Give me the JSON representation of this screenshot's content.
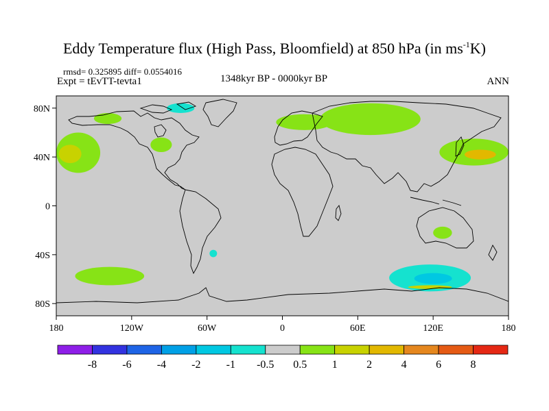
{
  "header": {
    "title_main": "Eddy Temperature flux (High Pass, Bloomfield) at 850 hPa (in ms",
    "title_sup": "-1",
    "title_end": "K)",
    "rmsd_line": "rmsd= 0.325895 diff= 0.0554016",
    "experiment": "Expt = tEvTT-tevta1",
    "period": "1348kyr BP - 0000kyr BP",
    "season": "ANN"
  },
  "map": {
    "background_color": "#cccccc",
    "coastline_color": "#000000",
    "lat_range": [
      -90,
      90
    ],
    "lon_range": [
      -180,
      180
    ],
    "lat_ticks": [
      {
        "value": 80,
        "label": "80N"
      },
      {
        "value": 40,
        "label": "40N"
      },
      {
        "value": 0,
        "label": "0"
      },
      {
        "value": -40,
        "label": "40S"
      },
      {
        "value": -80,
        "label": "80S"
      }
    ],
    "lon_ticks": [
      {
        "value": -180,
        "label": "180"
      },
      {
        "value": -120,
        "label": "120W"
      },
      {
        "value": -60,
        "label": "60W"
      },
      {
        "value": 0,
        "label": "0"
      },
      {
        "value": 60,
        "label": "60E"
      },
      {
        "value": 120,
        "label": "120E"
      },
      {
        "value": 180,
        "label": "180"
      }
    ],
    "regions": [
      {
        "name": "north-pacific-west-positive",
        "level": "0.5 to 1",
        "color": "#87e316",
        "lon": [
          -180,
          -145
        ],
        "lat": [
          27,
          60
        ]
      },
      {
        "name": "north-pacific-west-core",
        "level": "1 to 2",
        "color": "#c8d200",
        "lon": [
          -178,
          -160
        ],
        "lat": [
          35,
          50
        ]
      },
      {
        "name": "north-america-positive",
        "level": "0.5 to 1",
        "color": "#87e316",
        "lon": [
          -105,
          -88
        ],
        "lat": [
          44,
          56
        ]
      },
      {
        "name": "canadian-archipelago-negative",
        "level": "-1 to -0.5",
        "color": "#15e2cf",
        "lon": [
          -92,
          -70
        ],
        "lat": [
          76,
          84
        ]
      },
      {
        "name": "alaska-positive",
        "level": "0.5 to 1",
        "color": "#87e316",
        "lon": [
          -150,
          -128
        ],
        "lat": [
          67,
          76
        ]
      },
      {
        "name": "europe-positive",
        "level": "0.5 to 1",
        "color": "#87e316",
        "lon": [
          -5,
          40
        ],
        "lat": [
          62,
          75
        ]
      },
      {
        "name": "siberia-positive",
        "level": "0.5 to 1",
        "color": "#87e316",
        "lon": [
          30,
          110
        ],
        "lat": [
          58,
          84
        ]
      },
      {
        "name": "north-pacific-east-positive",
        "level": "0.5 to 1",
        "color": "#87e316",
        "lon": [
          125,
          180
        ],
        "lat": [
          33,
          55
        ]
      },
      {
        "name": "north-pacific-east-core",
        "level": "2 to 4",
        "color": "#e2b800",
        "lon": [
          145,
          170
        ],
        "lat": [
          38,
          46
        ]
      },
      {
        "name": "australia-positive",
        "level": "0.5 to 1",
        "color": "#87e316",
        "lon": [
          120,
          135
        ],
        "lat": [
          -27,
          -17
        ]
      },
      {
        "name": "south-pacific-positive",
        "level": "0.5 to 1",
        "color": "#87e316",
        "lon": [
          -165,
          -110
        ],
        "lat": [
          -65,
          -50
        ]
      },
      {
        "name": "south-america-negative",
        "level": "-1 to -0.5",
        "color": "#15e2cf",
        "lon": [
          -58,
          -52
        ],
        "lat": [
          -42,
          -36
        ]
      },
      {
        "name": "south-indian-negative",
        "level": "-1 to -0.5",
        "color": "#15e2cf",
        "lon": [
          85,
          150
        ],
        "lat": [
          -70,
          -48
        ]
      },
      {
        "name": "south-indian-core",
        "level": "-2 to -1",
        "color": "#00c8e2",
        "lon": [
          105,
          135
        ],
        "lat": [
          -64,
          -55
        ]
      },
      {
        "name": "antarctic-coast-positive",
        "level": "1 to 2",
        "color": "#c8d200",
        "lon": [
          100,
          135
        ],
        "lat": [
          -68,
          -65
        ]
      }
    ]
  },
  "colorbar": {
    "labels": [
      "-8",
      "-6",
      "-4",
      "-2",
      "-1",
      "-0.5",
      "0.5",
      "1",
      "2",
      "4",
      "6",
      "8"
    ],
    "colors": [
      "#8e1ee8",
      "#3232e0",
      "#1e64e6",
      "#00a0e6",
      "#00c8e2",
      "#15e2cf",
      "#cccccc",
      "#87e316",
      "#c8d200",
      "#e2b800",
      "#e5871e",
      "#e55a14",
      "#e52814"
    ]
  }
}
